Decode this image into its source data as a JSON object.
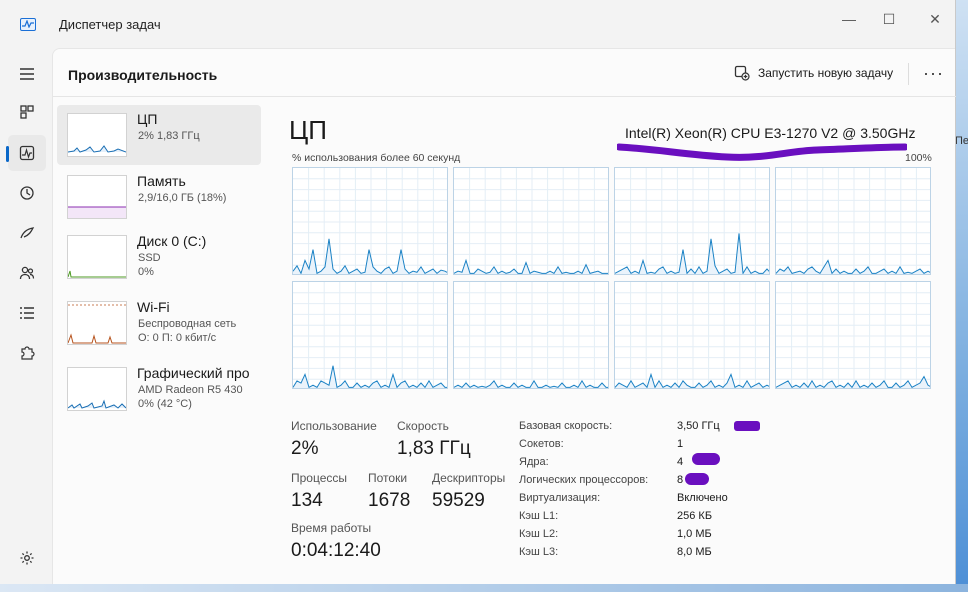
{
  "window": {
    "title": "Диспетчер задач",
    "minimize": "—",
    "maximize": "☐",
    "close": "✕"
  },
  "nav": {
    "items": [
      "menu-icon",
      "processes-icon",
      "performance-icon",
      "history-icon",
      "startup-icon",
      "users-icon",
      "details-icon",
      "services-icon"
    ],
    "settings": "settings-icon"
  },
  "header": {
    "title": "Производительность",
    "run_task": "Запустить новую задачу",
    "more": "···"
  },
  "resources": [
    {
      "name": "ЦП",
      "sub1": "2%  1,83 ГГц",
      "sub2": "",
      "color": "#1a6fb4"
    },
    {
      "name": "Память",
      "sub1": "2,9/16,0 ГБ (18%)",
      "sub2": "",
      "color": "#8b2fb0"
    },
    {
      "name": "Диск 0 (C:)",
      "sub1": "SSD",
      "sub2": "0%",
      "color": "#4d9a23"
    },
    {
      "name": "Wi-Fi",
      "sub1": "Беспроводная сеть",
      "sub2": "О: 0  П: 0 кбит/с",
      "color": "#b6521c"
    },
    {
      "name": "Графический про",
      "sub1": "AMD Radeon R5 430",
      "sub2": "0%  (42 °C)",
      "color": "#1a6fb4"
    }
  ],
  "cpu": {
    "title": "ЦП",
    "model": "Intel(R) Xeon(R) CPU E3-1270 V2 @ 3.50GHz",
    "graph_caption": "% использования более 60 секунд",
    "graph_max": "100%",
    "line_color": "#1b82c5"
  },
  "stats": {
    "usage_label": "Использование",
    "usage_value": "2%",
    "speed_label": "Скорость",
    "speed_value": "1,83 ГГц",
    "processes_label": "Процессы",
    "processes_value": "134",
    "threads_label": "Потоки",
    "threads_value": "1678",
    "handles_label": "Дескрипторы",
    "handles_value": "59529",
    "uptime_label": "Время работы",
    "uptime_value": "0:04:12:40"
  },
  "specs": [
    {
      "label": "Базовая скорость:",
      "value": "3,50 ГГц"
    },
    {
      "label": "Сокетов:",
      "value": "1"
    },
    {
      "label": "Ядра:",
      "value": "4"
    },
    {
      "label": "Логических процессоров:",
      "value": "8"
    },
    {
      "label": "Виртуализация:",
      "value": "Включено"
    },
    {
      "label": "Кэш L1:",
      "value": "256 КБ"
    },
    {
      "label": "Кэш L2:",
      "value": "1,0 МБ"
    },
    {
      "label": "Кэш L3:",
      "value": "8,0 МБ"
    }
  ],
  "behind_window_text": "Пе"
}
